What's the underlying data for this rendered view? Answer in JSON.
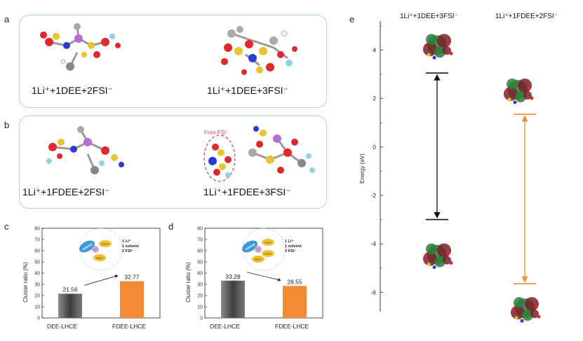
{
  "panels": {
    "a": {
      "label": "a",
      "left_name": "1Li⁺+1DEE+2FSI⁻",
      "right_name": "1Li⁺+1DEE+3FSI⁻"
    },
    "b": {
      "label": "b",
      "left_name": "1Li⁺+1FDEE+2FSI⁻",
      "right_name": "1Li⁺+1FDEE+3FSI⁻",
      "free_label": "Free FSI⁻"
    },
    "c": {
      "label": "c",
      "inset_lines": [
        "1 Li⁺",
        "1 solvent",
        "2 FSI⁻"
      ]
    },
    "d": {
      "label": "d",
      "inset_lines": [
        "1 Li⁺",
        "1 solvent",
        "3 FSI⁻"
      ]
    },
    "e": {
      "label": "e",
      "col_left": "1Li⁺+1DEE+3FSI⁻",
      "col_right": "1Li⁺+1FDEE+2FSI⁻"
    }
  },
  "inset_words": {
    "solvent": "solvent",
    "anion": "anion",
    "li": "Li⁺"
  },
  "colors": {
    "box_border": "#a9d3e8",
    "orange": "#f58a34",
    "gray_bar": "#6b6b6b",
    "black": "#111111"
  },
  "chart_data": [
    {
      "type": "bar",
      "title": "",
      "categories": [
        "DEE-LHCE",
        "FDEE-LHCE"
      ],
      "values": [
        21.56,
        32.77
      ],
      "value_labels": [
        "21.56",
        "32.77"
      ],
      "ylabel": "Cluster ratio (%)",
      "ylim": [
        0,
        80
      ],
      "yticks": [
        "0",
        "10",
        "20",
        "30",
        "40",
        "50",
        "60",
        "70",
        "80"
      ]
    },
    {
      "type": "bar",
      "title": "",
      "categories": [
        "DEE-LHCE",
        "FDEE-LHCE"
      ],
      "values": [
        33.28,
        28.55
      ],
      "value_labels": [
        "33.28",
        "28.55"
      ],
      "ylabel": "Cluster ratio (%)",
      "ylim": [
        0,
        80
      ],
      "yticks": [
        "0",
        "10",
        "20",
        "30",
        "40",
        "50",
        "60",
        "70",
        "80"
      ]
    },
    {
      "type": "scatter",
      "title": "",
      "ylabel": "Energy (eV)",
      "ylim": [
        -6.8,
        5.2
      ],
      "yticks": [
        "4",
        "2",
        "0",
        "-2",
        "-4",
        "-6"
      ],
      "series": [
        {
          "name": "1Li⁺+1DEE+3FSI⁻",
          "LUMO": 3.05,
          "HOMO": -3.0
        },
        {
          "name": "1Li⁺+1FDEE+2FSI⁻",
          "LUMO": 1.35,
          "HOMO": -5.65
        }
      ]
    }
  ]
}
